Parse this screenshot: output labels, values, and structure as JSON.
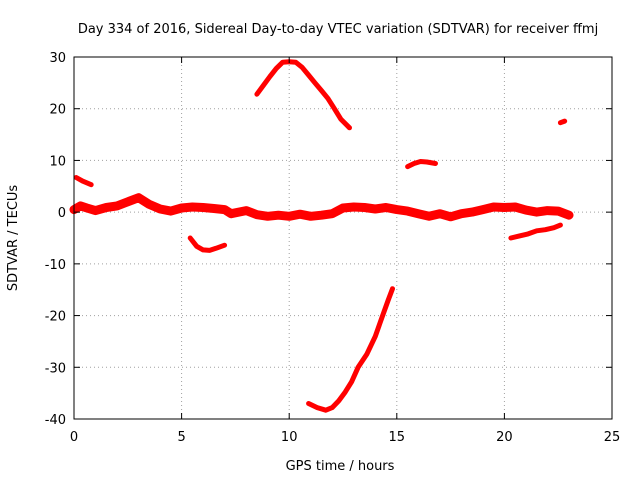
{
  "chart_data": {
    "type": "line",
    "title": "Day 334 of 2016, Sidereal Day-to-day VTEC variation (SDTVAR) for receiver ffmj",
    "xlabel": "GPS time / hours",
    "ylabel": "SDTVAR / TECUs",
    "xlim": [
      0,
      25
    ],
    "ylim": [
      -40,
      30
    ],
    "xticks": [
      0,
      5,
      10,
      15,
      20,
      25
    ],
    "yticks": [
      -40,
      -30,
      -20,
      -10,
      0,
      10,
      20,
      30
    ],
    "grid": true,
    "color": "#ff0000",
    "series": [
      {
        "name": "main-band",
        "x": [
          0,
          0.3,
          0.6,
          1.0,
          1.5,
          2.0,
          2.5,
          3.0,
          3.5,
          4.0,
          4.5,
          5.0,
          5.5,
          6.0,
          6.5,
          7.0,
          7.3,
          8.0,
          8.5,
          9.0,
          9.5,
          10.0,
          10.5,
          11.0,
          11.5,
          12.0,
          12.5,
          13.0,
          13.5,
          14.0,
          14.5,
          15.0,
          15.5,
          16.0,
          16.5,
          17.0,
          17.5,
          18.0,
          18.5,
          19.0,
          19.5,
          20.0,
          20.5,
          21.0,
          21.5,
          22.0,
          22.5,
          23.0
        ],
        "values": [
          0.5,
          1.2,
          0.8,
          0.3,
          0.9,
          1.2,
          2.0,
          2.8,
          1.5,
          0.6,
          0.2,
          0.8,
          1.0,
          0.9,
          0.7,
          0.5,
          -0.3,
          0.3,
          -0.5,
          -0.8,
          -0.6,
          -0.8,
          -0.4,
          -0.8,
          -0.6,
          -0.3,
          0.8,
          1.0,
          0.9,
          0.6,
          0.9,
          0.5,
          0.2,
          -0.3,
          -0.8,
          -0.3,
          -0.9,
          -0.3,
          0.0,
          0.5,
          1.0,
          0.9,
          1.0,
          0.4,
          0.0,
          0.3,
          0.2,
          -0.6
        ]
      },
      {
        "name": "segment-early",
        "x": [
          0.1,
          0.4,
          0.8
        ],
        "values": [
          6.7,
          6.0,
          5.3
        ]
      },
      {
        "name": "segment-dip",
        "x": [
          5.4,
          5.7,
          6.0,
          6.3,
          6.6,
          7.0
        ],
        "values": [
          -5.0,
          -6.6,
          -7.3,
          -7.4,
          -7.0,
          -6.4
        ]
      },
      {
        "name": "segment-arc-high",
        "x": [
          8.5,
          8.8,
          9.1,
          9.4,
          9.7,
          10.0,
          10.3,
          10.6,
          10.9,
          11.2,
          11.5,
          11.8,
          12.1,
          12.4,
          12.8
        ],
        "values": [
          22.8,
          24.5,
          26.2,
          27.8,
          29.0,
          29.1,
          29.0,
          28.0,
          26.5,
          25.0,
          23.5,
          22.0,
          20.0,
          18.0,
          16.3
        ]
      },
      {
        "name": "segment-arc-low",
        "x": [
          10.9,
          11.3,
          11.7,
          12.0,
          12.3,
          12.6,
          12.9,
          13.2,
          13.6,
          14.0,
          14.3,
          14.6,
          14.8
        ],
        "values": [
          -37.0,
          -37.8,
          -38.3,
          -37.8,
          -36.5,
          -34.8,
          -32.8,
          -30.0,
          -27.5,
          -24.0,
          -20.5,
          -17.0,
          -14.8
        ]
      },
      {
        "name": "segment-mid",
        "x": [
          15.5,
          15.8,
          16.1,
          16.4,
          16.8
        ],
        "values": [
          8.8,
          9.4,
          9.8,
          9.7,
          9.4
        ]
      },
      {
        "name": "segment-late-low",
        "x": [
          20.3,
          20.7,
          21.1,
          21.5,
          21.9,
          22.3,
          22.6
        ],
        "values": [
          -5.0,
          -4.6,
          -4.2,
          -3.6,
          -3.4,
          -3.0,
          -2.5
        ]
      },
      {
        "name": "segment-late-point",
        "x": [
          22.6,
          22.8
        ],
        "values": [
          17.3,
          17.6
        ]
      }
    ]
  }
}
